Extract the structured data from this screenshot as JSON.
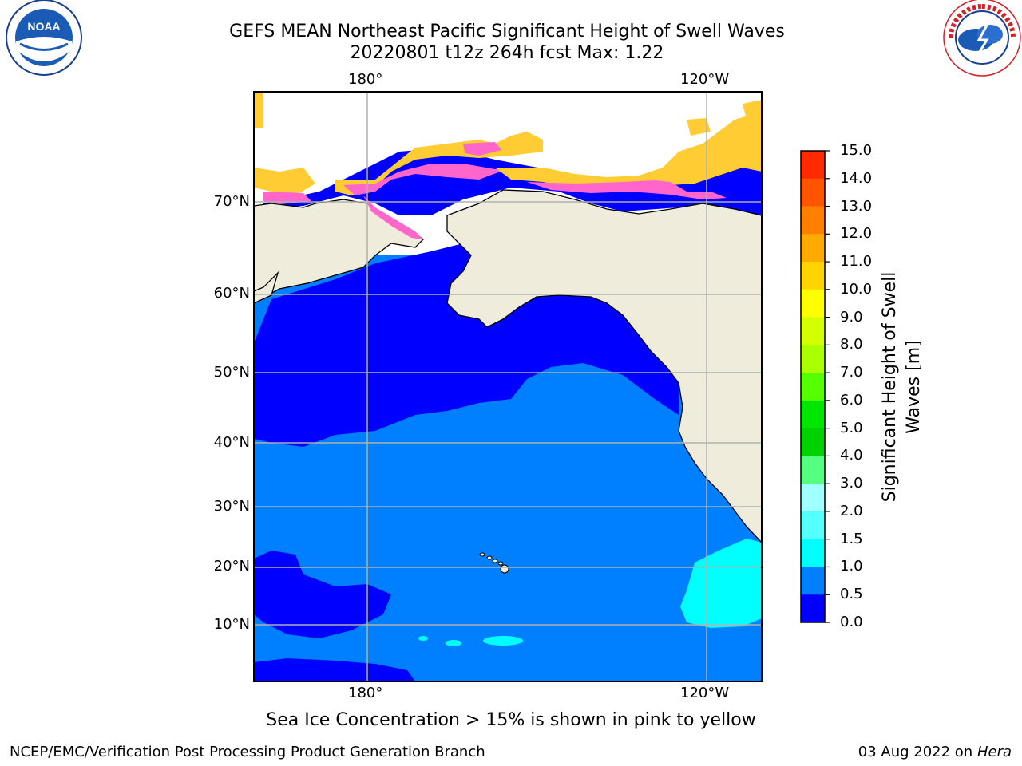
{
  "title": {
    "line1": "GEFS MEAN Northeast Pacific Significant Height of Swell Waves",
    "line2": "20220801 t12z 264h fcst   Max: 1.22"
  },
  "logos": {
    "noaa": {
      "label": "NOAA",
      "ring_text": "NATIONAL OCEANIC AND ATMOSPHERIC ADMINISTRATION · U.S. DEPARTMENT OF COMMERCE"
    },
    "nws": {
      "ring_text": "NATIONAL WEATHER SERVICE"
    }
  },
  "map": {
    "lon_labels": [
      "180°",
      "120°W"
    ],
    "lat_labels": [
      "70°N",
      "60°N",
      "50°N",
      "40°N",
      "30°N",
      "20°N",
      "10°N"
    ],
    "colors": {
      "land": "#efecdc",
      "ocean_low": "#0000ff",
      "ocean_mid": "#007fff",
      "ocean_high": "#00ffff",
      "ice_pink": "#ff66cc",
      "ice_yellow": "#ffcc33",
      "grid": "#b0b0b0"
    }
  },
  "colorbar": {
    "label_line1": "Significant Height of Swell",
    "label_line2": "Waves [m]",
    "ticks": [
      "15.0",
      "14.0",
      "13.0",
      "12.0",
      "11.0",
      "10.0",
      "9.0",
      "8.0",
      "7.0",
      "6.0",
      "5.0",
      "4.0",
      "3.0",
      "2.0",
      "1.5",
      "1.0",
      "0.5",
      "0.0"
    ],
    "colors": [
      "#ff0000",
      "#ff2a00",
      "#ff5500",
      "#ff8000",
      "#ffaa00",
      "#ffd400",
      "#ffff00",
      "#d4ff00",
      "#aaff00",
      "#55ff00",
      "#00e600",
      "#00d200",
      "#55ff80",
      "#a0ffff",
      "#55ffff",
      "#00ffff",
      "#007fff",
      "#0000ff"
    ]
  },
  "caption": "Sea Ice Concentration > 15% is shown in pink to yellow",
  "footer": {
    "left": "NCEP/EMC/Verification Post Processing Product Generation Branch",
    "right_date": "03 Aug 2022 on",
    "right_host": "Hera"
  }
}
